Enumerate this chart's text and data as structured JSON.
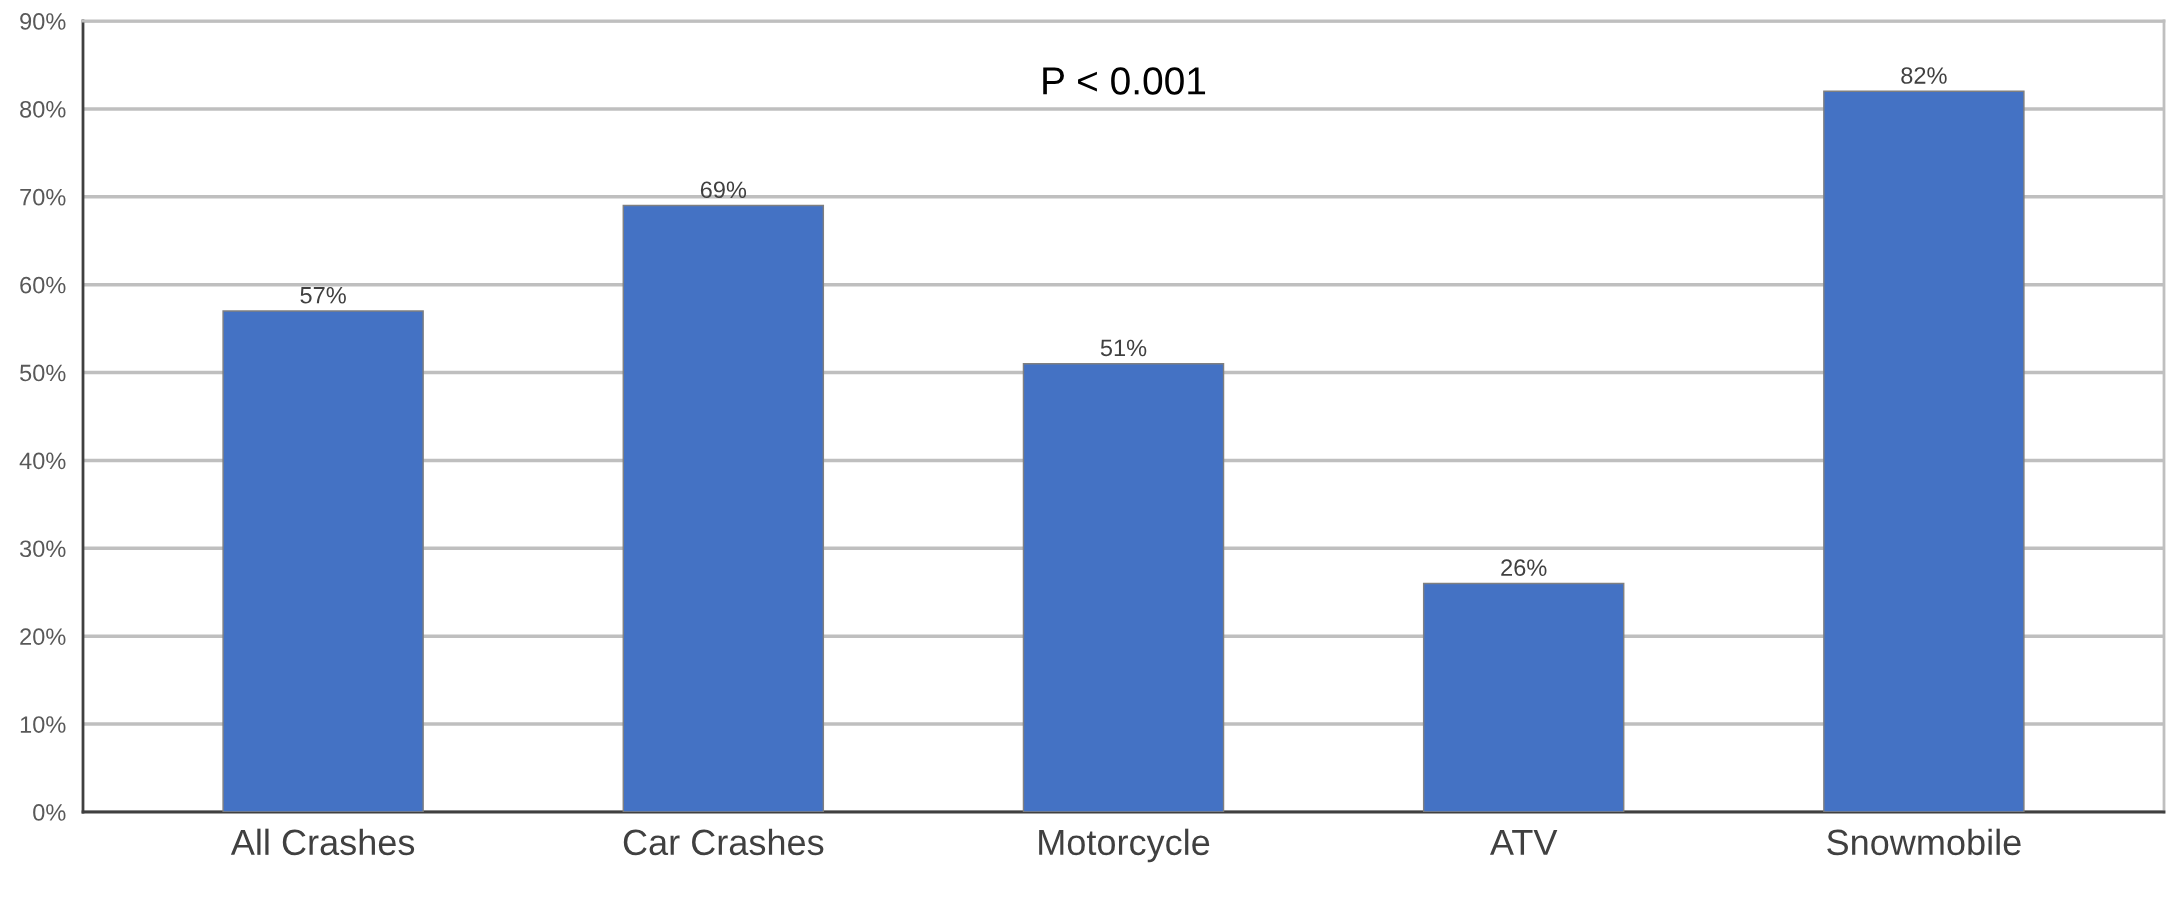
{
  "chart_data": {
    "type": "bar",
    "categories": [
      "All Crashes",
      "Car Crashes",
      "Motorcycle",
      "ATV",
      "Snowmobile"
    ],
    "values": [
      57,
      69,
      51,
      26,
      82
    ],
    "value_labels": [
      "57%",
      "69%",
      "51%",
      "26%",
      "82%"
    ],
    "color": "#4472c4",
    "ylim": [
      0,
      90
    ],
    "yticks": [
      {
        "value": 0,
        "label": "0%"
      },
      {
        "value": 10,
        "label": "10%"
      },
      {
        "value": 20,
        "label": "20%"
      },
      {
        "value": 30,
        "label": "30%"
      },
      {
        "value": 40,
        "label": "40%"
      },
      {
        "value": 50,
        "label": "50%"
      },
      {
        "value": 60,
        "label": "60%"
      },
      {
        "value": 70,
        "label": "70%"
      },
      {
        "value": 80,
        "label": "80%"
      },
      {
        "value": 90,
        "label": "90%"
      }
    ],
    "grid": "y",
    "annotations": [
      "P < 0.001"
    ]
  }
}
